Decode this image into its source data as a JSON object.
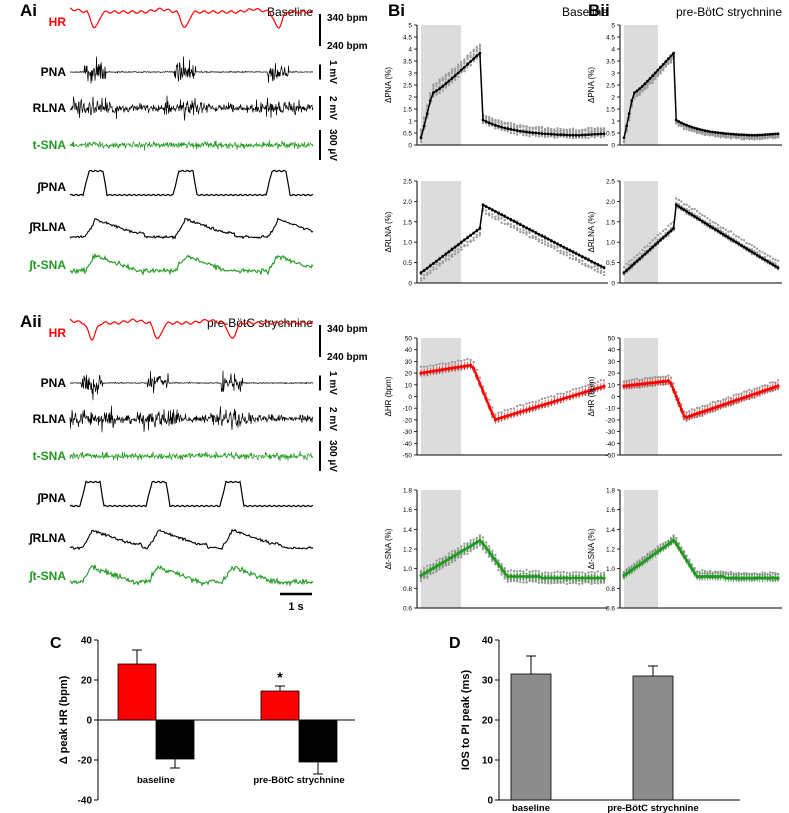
{
  "colors": {
    "red": "#ff0000",
    "green": "#1f9a1f",
    "black": "#000000",
    "gray": "#9b9b9b",
    "shade": "#dcdcdc",
    "bar_gray": "#8c8c8c"
  },
  "panelA": {
    "ai": {
      "label": "Ai",
      "condition": "Baseline"
    },
    "aii": {
      "label": "Aii",
      "condition": "pre-BötC strychnine"
    },
    "traces": [
      "HR",
      "PNA",
      "RLNA",
      "t-SNA",
      "∫PNA",
      "∫RLNA",
      "∫t-SNA"
    ],
    "scales": {
      "hr_top": "340 bpm",
      "hr_bottom": "240 bpm",
      "pna": "1 mV",
      "rlna": "2 mV",
      "tsna": "300 µV"
    },
    "time_scale": "1 s"
  },
  "panelB": {
    "bi": {
      "label": "Bi",
      "condition": "Baseline"
    },
    "bii": {
      "label": "Bii",
      "condition": "pre-BötC strychnine"
    },
    "rows": [
      {
        "ylabel": "ΔPNA (%)",
        "ticks": [
          "0",
          "0.5",
          "1",
          "1.5",
          "2",
          "2.5",
          "3",
          "3.5",
          "4",
          "4.5",
          "5"
        ],
        "color": "black",
        "min": 0,
        "max": 5
      },
      {
        "ylabel": "ΔRLNA (%)",
        "ticks": [
          "0",
          "0.5",
          "1.0",
          "1.5",
          "2.0",
          "2.5"
        ],
        "color": "black",
        "min": 0,
        "max": 2.5
      },
      {
        "ylabel": "ΔHR (bpm)",
        "ticks": [
          "-50",
          "-40",
          "-30",
          "-20",
          "-10",
          "0",
          "10",
          "20",
          "30",
          "40",
          "50"
        ],
        "color": "red",
        "min": -50,
        "max": 50
      },
      {
        "ylabel": "Δt-SNA (%)",
        "ticks": [
          "0.6",
          "0.8",
          "1.0",
          "1.2",
          "1.4",
          "1.6",
          "1.8"
        ],
        "color": "green",
        "min": 0.6,
        "max": 1.8
      }
    ]
  },
  "chart_data": [
    {
      "type": "bar",
      "panel": "C",
      "title": "",
      "ylabel": "Δ peak HR (bpm)",
      "categories": [
        "baseline",
        "pre-BötC strychnine"
      ],
      "series": [
        {
          "name": "increase",
          "color": "red",
          "values": [
            28,
            14.5
          ],
          "errors": [
            7,
            2.5
          ]
        },
        {
          "name": "decrease",
          "color": "black",
          "values": [
            -19.5,
            -21
          ],
          "errors": [
            4.5,
            6
          ]
        }
      ],
      "ylim": [
        -40,
        40
      ],
      "yticks": [
        "40",
        "20",
        "0",
        "-20",
        "-40"
      ],
      "annotations": [
        "*"
      ]
    },
    {
      "type": "bar",
      "panel": "D",
      "title": "",
      "ylabel": "IOS to PI peak (ms)",
      "categories": [
        "baseline",
        "pre-BötC strychnine"
      ],
      "values": [
        31.5,
        31
      ],
      "errors": [
        4.5,
        2.5
      ],
      "ylim": [
        0,
        40
      ],
      "yticks": [
        "40",
        "30",
        "20",
        "10",
        "0"
      ]
    }
  ],
  "labels": {
    "c": "C",
    "d": "D"
  }
}
